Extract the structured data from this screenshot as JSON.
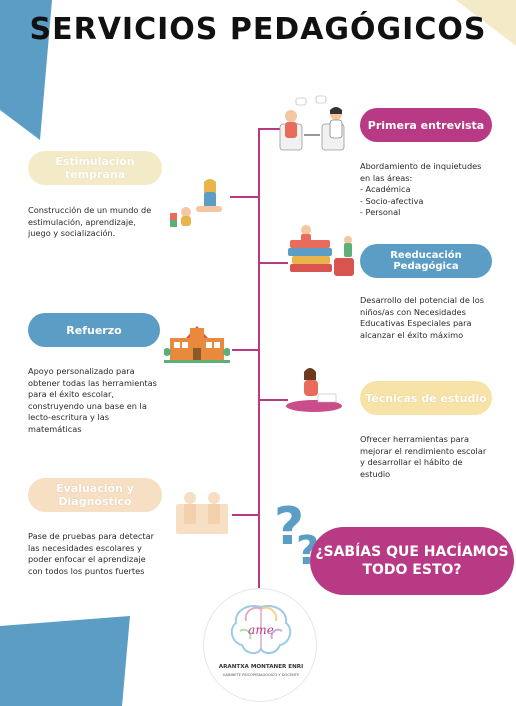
{
  "title": "SERVICIOS PEDAGÓGICOS",
  "left_services": [
    {
      "label": "Estimulación temprana",
      "description": "Construcción de un mundo de\nestimulación, aprendizaje,\njuego y socialización."
    },
    {
      "label": "Refuerzo",
      "description": "Apoyo personalizado para\nobtener todas las herramientas\npara el éxito escolar,\nconstruyendo una base en la\nlecto-escritura y las\nmatemáticas"
    },
    {
      "label": "Evaluación y Diagnóstico",
      "description": "Pase de pruebas para detectar\nlas necesidades escolares y\npoder enfocar el aprendizaje\ncon todos los puntos fuertes"
    }
  ],
  "right_services": [
    {
      "label": "Primera entrevista",
      "description": "Abordamiento de inquietudes\nen las áreas:\n- Académica\n- Socio-afectiva\n- Personal"
    },
    {
      "label": "Reeducación Pedagógica",
      "description": "Desarrollo del potencial de los\nniños/as con Necesidades\nEducativas Especiales para\nalcanzar el éxito máximo"
    },
    {
      "label": "Técnicas de estudio",
      "description": "Ofrecer herramientas para\nmejorar el rendimiento escolar\ny desarrollar el hábito de\nestudio"
    }
  ],
  "callout": {
    "line1": "¿SABÍAS QUE HACÍAMOS",
    "line2": "TODO ESTO?"
  },
  "logo": {
    "mark": "ame",
    "name": "ARANTXA MONTANER ENRI",
    "subtitle": "GABINETE PSICOPEDAGÓGICO Y DOCENTE"
  },
  "colors": {
    "magenta": "#b93a84",
    "blue": "#5b9dc4",
    "cream": "#f3eac8",
    "yellow": "#f7e2a8",
    "peach": "#f7dfc3"
  }
}
